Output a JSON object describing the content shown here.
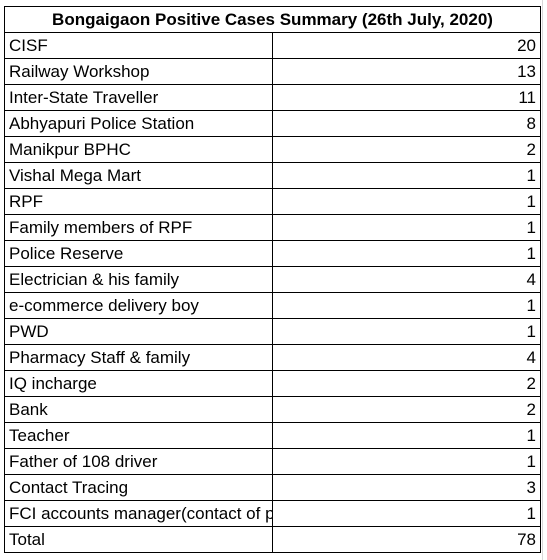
{
  "title": "Bongaigaon Positive Cases Summary (26th July, 2020)",
  "rows": [
    {
      "label": "CISF",
      "value": "20"
    },
    {
      "label": "Railway Workshop",
      "value": "13"
    },
    {
      "label": "Inter-State Traveller",
      "value": "11"
    },
    {
      "label": "Abhyapuri Police Station",
      "value": "8"
    },
    {
      "label": "Manikpur BPHC",
      "value": "2"
    },
    {
      "label": "Vishal Mega Mart",
      "value": "1"
    },
    {
      "label": "RPF",
      "value": "1"
    },
    {
      "label": "Family members of RPF",
      "value": "1"
    },
    {
      "label": "Police Reserve",
      "value": "1"
    },
    {
      "label": "Electrician & his family",
      "value": "4"
    },
    {
      "label": "e-commerce delivery boy",
      "value": "1"
    },
    {
      "label": "PWD",
      "value": "1"
    },
    {
      "label": "Pharmacy Staff & family",
      "value": "4"
    },
    {
      "label": "IQ incharge",
      "value": "2"
    },
    {
      "label": "Bank",
      "value": "2"
    },
    {
      "label": "Teacher",
      "value": "1"
    },
    {
      "label": "Father of 108 driver",
      "value": "1"
    },
    {
      "label": "Contact Tracing",
      "value": "3"
    },
    {
      "label": "FCI accounts manager(contact of positive case)",
      "value": "1"
    }
  ],
  "total": {
    "label": "Total",
    "value": "78"
  }
}
